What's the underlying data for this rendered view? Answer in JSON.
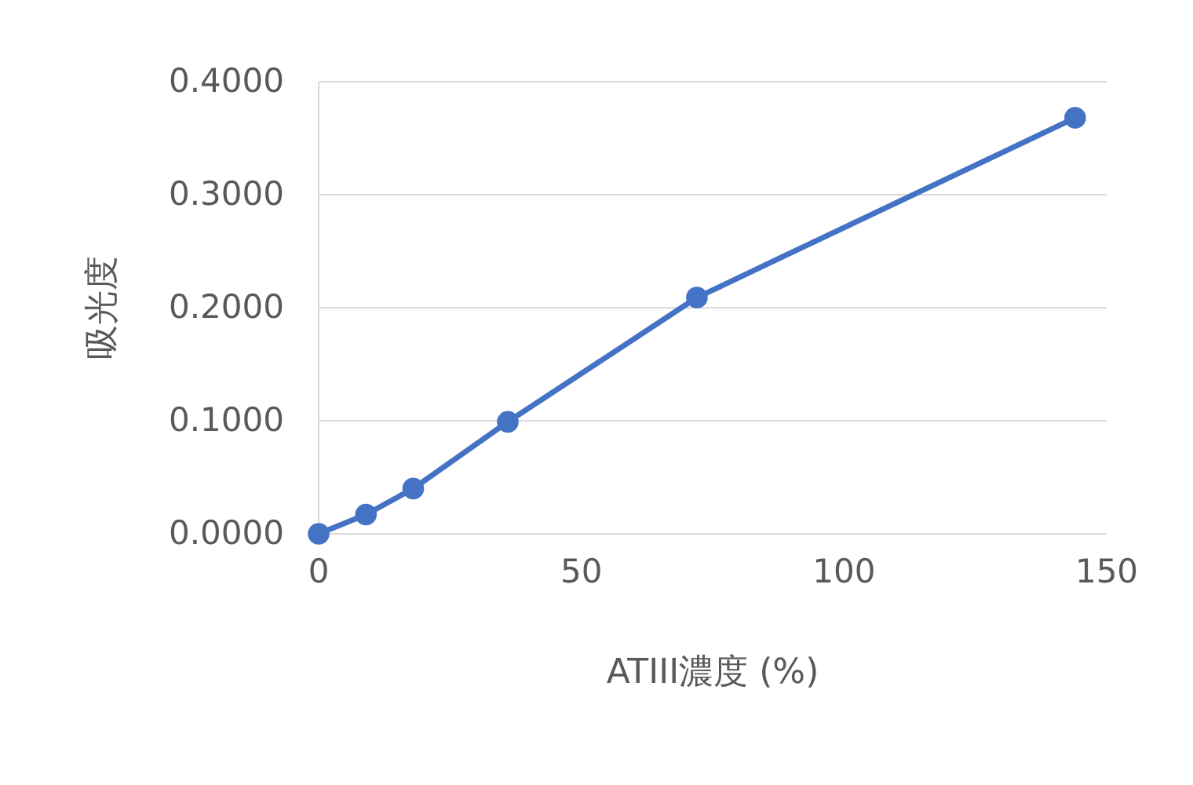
{
  "chart_data": {
    "type": "line",
    "xlabel": "ATIII濃度 (%)",
    "ylabel": "吸光度",
    "x": [
      0,
      9,
      18,
      36,
      72,
      144
    ],
    "series": [
      {
        "color": "#4472c4",
        "values": [
          0,
          0.017,
          0.04,
          0.099,
          0.209,
          0.368
        ]
      }
    ],
    "xlim": [
      0,
      150
    ],
    "xticks": [
      0,
      50,
      100,
      150
    ],
    "ylim": [
      0,
      0.4
    ],
    "yticks": [
      {
        "value": 0,
        "label": "0.0000"
      },
      {
        "value": 0.1,
        "label": "0.1000"
      },
      {
        "value": 0.2,
        "label": "0.2000"
      },
      {
        "value": 0.3,
        "label": "0.3000"
      },
      {
        "value": 0.4,
        "label": "0.4000"
      }
    ],
    "grid": "y",
    "marker": "circle",
    "line_style": "solid"
  }
}
